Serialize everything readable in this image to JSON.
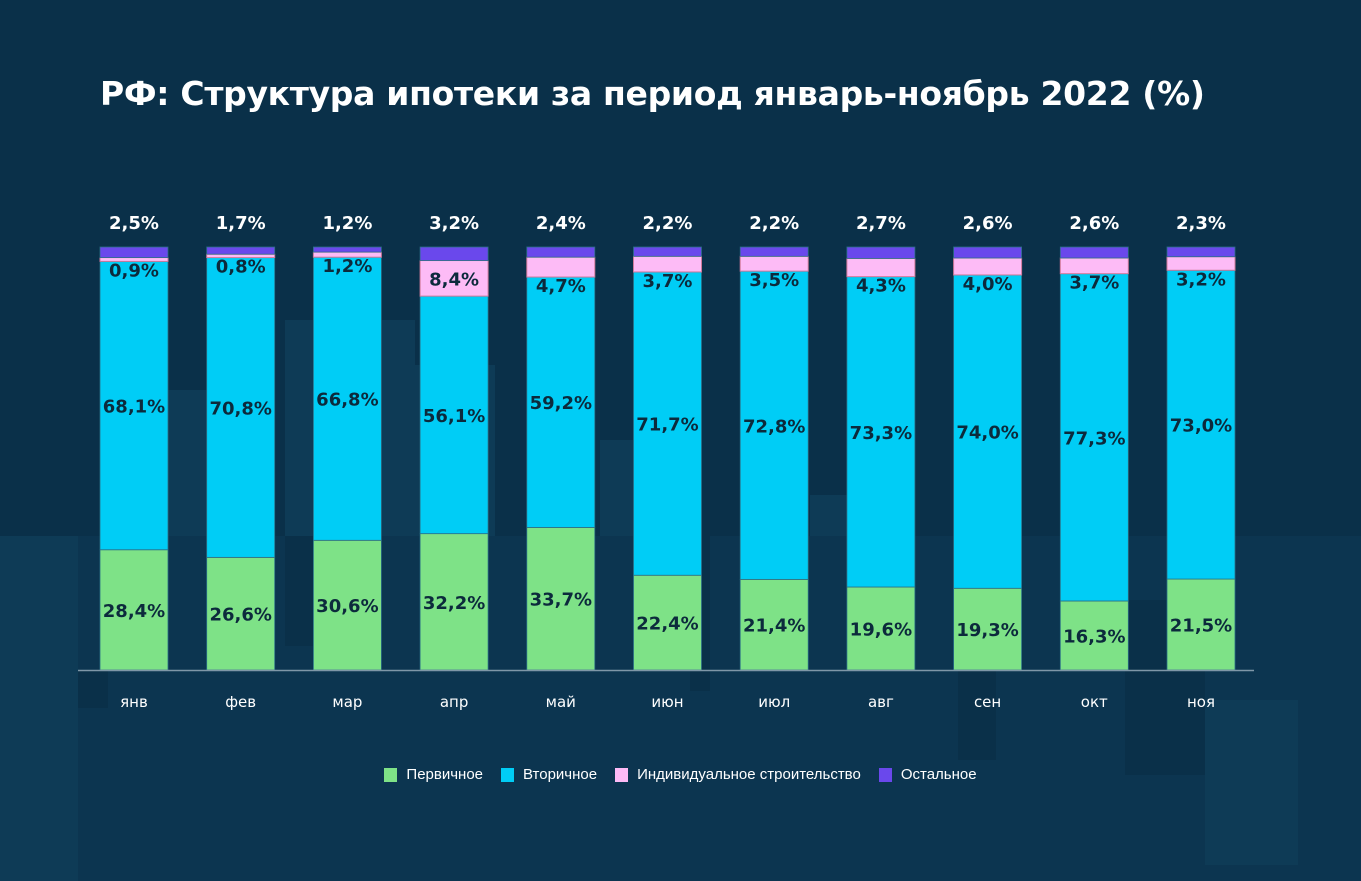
{
  "title": "РФ: Структура ипотеки за период январь-ноябрь 2022 (%)",
  "chart_data": {
    "type": "bar",
    "stacked": true,
    "title": "РФ: Структура ипотеки за период январь-ноябрь 2022 (%)",
    "xlabel": "",
    "ylabel": "",
    "ylim": [
      0,
      100
    ],
    "grid": false,
    "legend_position": "bottom",
    "categories": [
      "янв",
      "фев",
      "мар",
      "апр",
      "май",
      "июн",
      "июл",
      "авг",
      "сен",
      "окт",
      "ноя"
    ],
    "series": [
      {
        "name": "Первичное",
        "color": "#7ee287",
        "values": [
          28.4,
          26.6,
          30.6,
          32.2,
          33.7,
          22.4,
          21.4,
          19.6,
          19.3,
          16.3,
          21.5
        ],
        "labels": [
          "28,4%",
          "26,6%",
          "30,6%",
          "32,2%",
          "33,7%",
          "22,4%",
          "21,4%",
          "19,6%",
          "19,3%",
          "16,3%",
          "21,5%"
        ]
      },
      {
        "name": "Вторичное",
        "color": "#00cdf6",
        "values": [
          68.1,
          70.8,
          66.8,
          56.1,
          59.2,
          71.7,
          72.8,
          73.3,
          74.0,
          77.3,
          73.0
        ],
        "labels": [
          "68,1%",
          "70,8%",
          "66,8%",
          "56,1%",
          "59,2%",
          "71,7%",
          "72,8%",
          "73,3%",
          "74,0%",
          "77,3%",
          "73,0%"
        ]
      },
      {
        "name": "Индивидуальное строительство",
        "color": "#fdbbf6",
        "values": [
          0.9,
          0.8,
          1.2,
          8.4,
          4.7,
          3.7,
          3.5,
          4.3,
          4.0,
          3.7,
          3.2
        ],
        "labels": [
          "0,9%",
          "0,8%",
          "1,2%",
          "8,4%",
          "4,7%",
          "3,7%",
          "3,5%",
          "4,3%",
          "4,0%",
          "3,7%",
          "3,2%"
        ]
      },
      {
        "name": "Остальное",
        "color": "#6a48ec",
        "values": [
          2.5,
          1.7,
          1.2,
          3.2,
          2.4,
          2.2,
          2.2,
          2.7,
          2.6,
          2.6,
          2.3
        ],
        "labels": [
          "2,5%",
          "1,7%",
          "1,2%",
          "3,2%",
          "2,4%",
          "2,2%",
          "2,2%",
          "2,7%",
          "2,6%",
          "2,6%",
          "2,3%"
        ]
      }
    ]
  }
}
